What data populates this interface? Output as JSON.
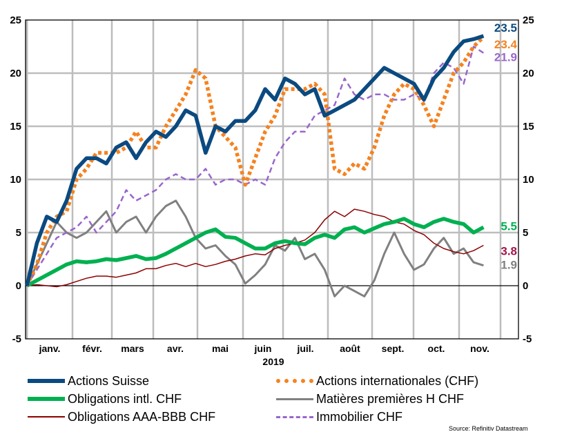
{
  "chart_data": {
    "type": "line",
    "title": "",
    "xlabel": "2019",
    "ylabel": "",
    "ylim": [
      -5,
      25
    ],
    "yticks": [
      -5,
      0,
      5,
      10,
      15,
      20,
      25
    ],
    "grid": true,
    "legend_position": "bottom",
    "x_unit": "week of year 2019",
    "month_labels": [
      "janv.",
      "févr.",
      "mars",
      "avr.",
      "mai",
      "juin",
      "juil.",
      "août",
      "sept.",
      "oct.",
      "nov."
    ],
    "series": [
      {
        "name": "Actions Suisse",
        "color": "#0b4a80",
        "style": "solid-thick",
        "end_label": "23.5",
        "values": [
          0,
          4,
          6.5,
          6,
          8,
          11,
          12,
          12,
          11.5,
          13,
          13.5,
          12,
          13.5,
          14.5,
          14,
          15,
          16.5,
          16,
          12.5,
          15,
          14.5,
          15.5,
          15.5,
          16.5,
          18.5,
          17.5,
          19.5,
          19,
          18,
          18.5,
          16,
          16.5,
          17,
          17.5,
          18.5,
          19.5,
          20.5,
          20,
          19.5,
          19,
          17.5,
          19.5,
          20.5,
          22,
          23,
          23.2,
          23.5
        ]
      },
      {
        "name": "Actions internationales (CHF)",
        "color": "#f58220",
        "style": "dotted-thick",
        "end_label": "23.4",
        "values": [
          0,
          2,
          5,
          6.5,
          7,
          10,
          11,
          12.5,
          12.5,
          12.5,
          13,
          14.5,
          13,
          13,
          15,
          16.5,
          18,
          20.3,
          19.5,
          15,
          14,
          13,
          9.5,
          12,
          14.5,
          16,
          18.5,
          18.5,
          18.5,
          19,
          18,
          11,
          10.5,
          11.5,
          11,
          13,
          16,
          18,
          19,
          18.5,
          17,
          15,
          17.5,
          20,
          21,
          22.5,
          23.4
        ]
      },
      {
        "name": "Obligations intl. CHF",
        "color": "#00b050",
        "style": "solid-thick",
        "end_label": "5.5",
        "values": [
          0,
          0.5,
          1,
          1.5,
          2,
          2.3,
          2.2,
          2.3,
          2.5,
          2.4,
          2.6,
          2.8,
          2.5,
          2.6,
          3,
          3.5,
          4,
          4.5,
          5,
          5.3,
          4.6,
          4.5,
          4,
          3.5,
          3.5,
          4,
          4.2,
          4,
          3.9,
          4.5,
          4.8,
          4.5,
          5.3,
          5.5,
          5,
          5.4,
          5.8,
          6,
          6.3,
          5.8,
          5.5,
          6,
          6.3,
          6,
          5.8,
          5,
          5.5
        ]
      },
      {
        "name": "Matières premières H CHF",
        "color": "#808080",
        "style": "solid",
        "end_label": "1.9",
        "values": [
          0,
          2,
          4,
          6,
          5,
          4.5,
          5,
          6,
          7,
          5,
          6,
          6.5,
          5,
          6.5,
          7.5,
          8,
          6.5,
          4.5,
          3.5,
          3.8,
          2.8,
          2,
          0.2,
          1,
          2,
          3.8,
          3.3,
          4.5,
          2.5,
          3,
          1.5,
          -1,
          0,
          -0.5,
          -1,
          0.5,
          3,
          5,
          3,
          1.5,
          2,
          3.5,
          4.5,
          3,
          3.5,
          2.2,
          1.9
        ]
      },
      {
        "name": "Obligations AAA-BBB CHF",
        "color": "#8b0000",
        "style": "solid-thin",
        "end_label": "3.8",
        "values": [
          0,
          0.1,
          0,
          -0.1,
          0.1,
          0.4,
          0.7,
          0.9,
          0.9,
          0.8,
          1,
          1.2,
          1.6,
          1.6,
          1.9,
          2.1,
          1.8,
          2.1,
          1.8,
          2,
          2.3,
          2.5,
          2.8,
          3,
          2.9,
          3.5,
          3.8,
          4,
          4.3,
          5,
          6.2,
          7,
          6.5,
          7.2,
          7,
          6.7,
          6.5,
          6,
          5.8,
          5.2,
          4.8,
          4,
          3.5,
          3.2,
          3,
          3.3,
          3.8
        ]
      },
      {
        "name": "Immobilier CHF",
        "color": "#9966cc",
        "style": "dashed",
        "end_label": "21.9",
        "values": [
          0,
          1.5,
          3,
          4.5,
          5,
          5.5,
          6.5,
          5,
          6,
          7,
          9,
          8,
          8.5,
          9,
          10,
          10.5,
          10,
          10,
          11,
          9.5,
          10,
          10,
          9.5,
          10,
          9.5,
          12,
          13.5,
          14.5,
          14.5,
          16,
          16.5,
          17,
          19.5,
          18,
          17.5,
          18,
          18,
          17.5,
          17.5,
          18,
          17.5,
          20,
          21,
          20.5,
          19,
          22.5,
          21.9
        ]
      }
    ]
  },
  "legend_order": [
    0,
    1,
    2,
    3,
    4,
    5
  ],
  "end_label_colors": {
    "Actions Suisse": "#0b4a80",
    "Actions internationales (CHF)": "#f58220",
    "Immobilier CHF": "#9966cc",
    "Obligations intl. CHF": "#00b050",
    "Obligations AAA-BBB CHF": "#a0154a",
    "Matières premières H CHF": "#808080"
  },
  "source": "Source: Refinitiv Datastream"
}
